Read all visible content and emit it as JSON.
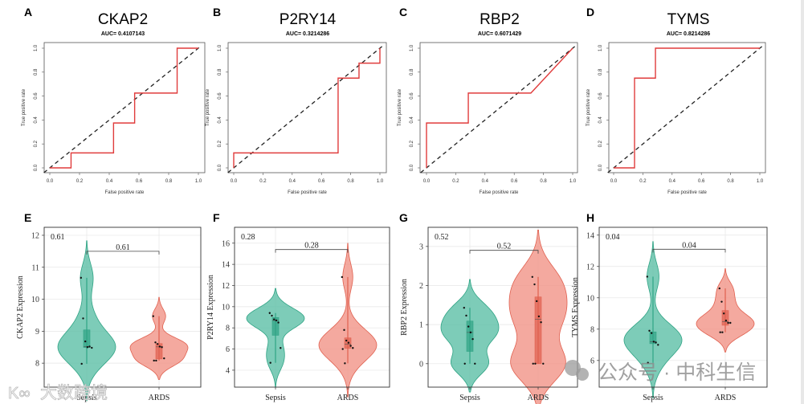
{
  "watermarks": {
    "left": "大数跨境",
    "right": "公众号 · 中科生信"
  },
  "chart_data": [
    {
      "panel": "A",
      "type": "line",
      "title": "CKAP2",
      "subtitle": "AUC= 0.4107143",
      "xlabel": "False positive rate",
      "ylabel": "True positive rate",
      "xlim": [
        0,
        1
      ],
      "ylim": [
        0,
        1
      ],
      "ticks": [
        0.0,
        0.2,
        0.4,
        0.6,
        0.8,
        1.0
      ],
      "tick_labels": [
        "0.0",
        "0.2",
        "0.4",
        "0.6",
        "0.8",
        "1.0"
      ],
      "roc": [
        [
          0,
          0
        ],
        [
          0.143,
          0
        ],
        [
          0.143,
          0.125
        ],
        [
          0.429,
          0.125
        ],
        [
          0.429,
          0.375
        ],
        [
          0.571,
          0.375
        ],
        [
          0.571,
          0.625
        ],
        [
          0.857,
          0.625
        ],
        [
          0.857,
          1
        ],
        [
          1,
          1
        ]
      ]
    },
    {
      "panel": "B",
      "type": "line",
      "title": "P2RY14",
      "subtitle": "AUC= 0.3214286",
      "xlabel": "False positive rate",
      "ylabel": "True positive rate",
      "xlim": [
        0,
        1
      ],
      "ylim": [
        0,
        1
      ],
      "ticks": [
        0.0,
        0.2,
        0.4,
        0.6,
        0.8,
        1.0
      ],
      "tick_labels": [
        "0.0",
        "0.2",
        "0.4",
        "0.6",
        "0.8",
        "1.0"
      ],
      "roc": [
        [
          0,
          0
        ],
        [
          0,
          0.125
        ],
        [
          0.714,
          0.125
        ],
        [
          0.714,
          0.75
        ],
        [
          0.857,
          0.75
        ],
        [
          0.857,
          0.875
        ],
        [
          1,
          0.875
        ],
        [
          1,
          1
        ]
      ]
    },
    {
      "panel": "C",
      "type": "line",
      "title": "RBP2",
      "subtitle": "AUC= 0.6071429",
      "xlabel": "False positive rate",
      "ylabel": "True positive rate",
      "xlim": [
        0,
        1
      ],
      "ylim": [
        0,
        1
      ],
      "ticks": [
        0.0,
        0.2,
        0.4,
        0.6,
        0.8,
        1.0
      ],
      "tick_labels": [
        "0.0",
        "0.2",
        "0.4",
        "0.6",
        "0.8",
        "1.0"
      ],
      "roc": [
        [
          0,
          0
        ],
        [
          0,
          0.375
        ],
        [
          0.286,
          0.375
        ],
        [
          0.286,
          0.625
        ],
        [
          0.714,
          0.625
        ],
        [
          1,
          1
        ]
      ]
    },
    {
      "panel": "D",
      "type": "line",
      "title": "TYMS",
      "subtitle": "AUC= 0.8214286",
      "xlabel": "False positive rate",
      "ylabel": "True positive rate",
      "xlim": [
        0,
        1
      ],
      "ylim": [
        0,
        1
      ],
      "ticks": [
        0.0,
        0.2,
        0.4,
        0.6,
        0.8,
        1.0
      ],
      "tick_labels": [
        "0.0",
        "0.2",
        "0.4",
        "0.6",
        "0.8",
        "1.0"
      ],
      "roc": [
        [
          0,
          0
        ],
        [
          0.143,
          0
        ],
        [
          0.143,
          0.75
        ],
        [
          0.286,
          0.75
        ],
        [
          0.286,
          1
        ],
        [
          1,
          1
        ]
      ]
    },
    {
      "panel": "E",
      "type": "violin",
      "ylabel": "CKAP2 Expression",
      "categories": [
        "Sepsis",
        "ARDS"
      ],
      "ylim": [
        7.25,
        12.25
      ],
      "yticks": [
        8,
        9,
        10,
        11,
        12
      ],
      "p_corner": "0.61",
      "p_bracket": "0.61",
      "bracket_y": 11.5,
      "series": [
        {
          "name": "Sepsis",
          "values": [
            10.67,
            9.4,
            8.68,
            8.5,
            8.52,
            8.48,
            7.98
          ]
        },
        {
          "name": "ARDS",
          "values": [
            9.47,
            8.65,
            8.6,
            8.52,
            8.5,
            8.15,
            8.08,
            8.08
          ]
        }
      ]
    },
    {
      "panel": "F",
      "type": "violin",
      "ylabel": "P2RY14 Expression",
      "categories": [
        "Sepsis",
        "ARDS"
      ],
      "ylim": [
        2.4,
        17.5
      ],
      "yticks": [
        4,
        6,
        8,
        10,
        12,
        14,
        16
      ],
      "p_corner": "0.28",
      "p_bracket": "0.28",
      "bracket_y": 15.4,
      "series": [
        {
          "name": "Sepsis",
          "values": [
            9.4,
            9.15,
            8.8,
            8.7,
            8.5,
            6.1,
            4.7
          ]
        },
        {
          "name": "ARDS",
          "values": [
            12.8,
            7.8,
            6.8,
            6.6,
            6.3,
            6.1,
            6.0,
            4.65
          ]
        }
      ]
    },
    {
      "panel": "G",
      "type": "violin",
      "ylabel": "RBP2 Expression",
      "categories": [
        "Sepsis",
        "ARDS"
      ],
      "ylim": [
        -0.6,
        3.49
      ],
      "yticks": [
        0,
        1,
        2,
        3
      ],
      "p_corner": "0.52",
      "p_bracket": "0.52",
      "bracket_y": 2.9,
      "series": [
        {
          "name": "Sepsis",
          "values": [
            1.43,
            1.23,
            0.95,
            0.8,
            0.63,
            0,
            0
          ]
        },
        {
          "name": "ARDS",
          "values": [
            2.22,
            2.03,
            1.6,
            1.21,
            1.06,
            0,
            0,
            0
          ]
        }
      ]
    },
    {
      "panel": "H",
      "type": "violin",
      "ylabel": "TYMS Expression",
      "categories": [
        "Sepsis",
        "ARDS"
      ],
      "ylim": [
        4.3,
        14.5
      ],
      "yticks": [
        6,
        8,
        10,
        12,
        14
      ],
      "p_corner": "0.04",
      "p_bracket": "0.04",
      "bracket_y": 13.1,
      "series": [
        {
          "name": "Sepsis",
          "values": [
            11.35,
            7.9,
            7.75,
            7.2,
            7.15,
            7.0,
            5.85
          ]
        },
        {
          "name": "ARDS",
          "values": [
            10.6,
            9.75,
            9.0,
            8.55,
            8.4,
            8.4,
            7.8,
            7.8
          ]
        }
      ]
    }
  ],
  "colors": {
    "roc": "#e03c3c",
    "sepsis_fill": "#5cbfa6",
    "sepsis_stroke": "#2fa384",
    "ards_fill": "#f19387",
    "ards_stroke": "#e0604f"
  }
}
